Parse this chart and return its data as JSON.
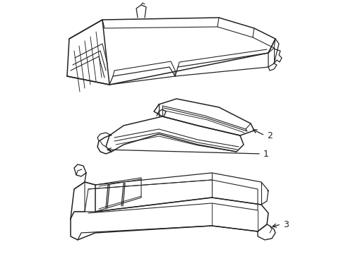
{
  "background_color": "#ffffff",
  "line_color": "#222222",
  "line_width": 1.1,
  "label_fontsize": 9,
  "fig_w": 4.9,
  "fig_h": 3.6,
  "dpi": 100
}
